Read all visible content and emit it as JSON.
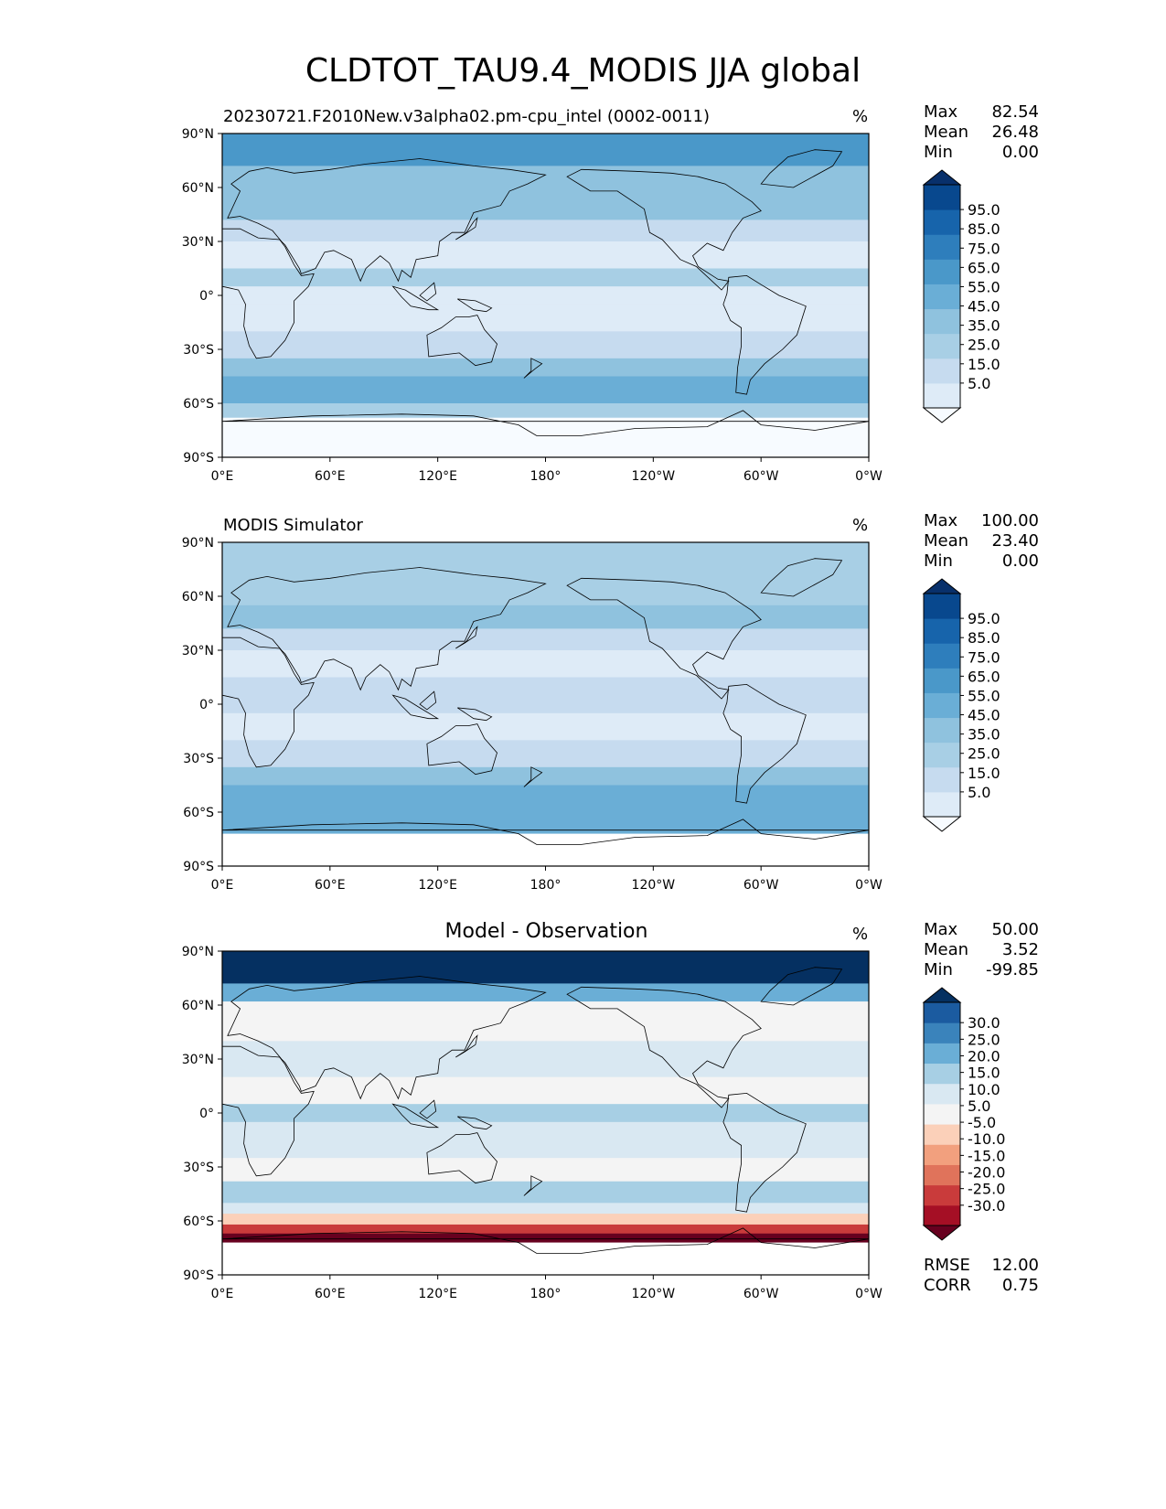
{
  "title": "CLDTOT_TAU9.4_MODIS JJA global",
  "colors": {
    "seq_levels": [
      "#f7fbff",
      "#deebf7",
      "#c6dbef",
      "#a8cfe5",
      "#8fc2de",
      "#6aaed6",
      "#4a98c9",
      "#2e7ebc",
      "#1764ab",
      "#08488e",
      "#08306b"
    ],
    "diff_levels": [
      "#67001f",
      "#a50f25",
      "#c93b3b",
      "#e0735b",
      "#f2a07e",
      "#fbd0b9",
      "#f4f4f4",
      "#d9e8f2",
      "#a7cfe4",
      "#6aaed6",
      "#3a83bb",
      "#1b5ba0",
      "#053061"
    ],
    "land_outline": "#000000"
  },
  "chart_data": [
    {
      "type": "heatmap",
      "panel": "test",
      "title": "20230721.F2010New.v3alpha02.pm-cpu_intel (0002-0011)",
      "units": "%",
      "stats": [
        {
          "label": "Max",
          "value": "82.54"
        },
        {
          "label": "Mean",
          "value": "26.48"
        },
        {
          "label": "Min",
          "value": "0.00"
        }
      ],
      "x_ticks": [
        "0°E",
        "60°E",
        "120°E",
        "180°",
        "120°W",
        "60°W",
        "0°W"
      ],
      "y_ticks": [
        "90°N",
        "60°N",
        "30°N",
        "0°",
        "30°S",
        "60°S",
        "90°S"
      ],
      "xlim": [
        0,
        360
      ],
      "ylim": [
        -90,
        90
      ],
      "colorbar_ticks": [
        "95.0",
        "85.0",
        "75.0",
        "65.0",
        "55.0",
        "45.0",
        "35.0",
        "25.0",
        "15.0",
        "5.0"
      ],
      "zonal_band_levels": [
        {
          "lat": [
            72,
            90
          ],
          "level": 6
        },
        {
          "lat": [
            55,
            72
          ],
          "level": 4
        },
        {
          "lat": [
            42,
            55
          ],
          "level": 4
        },
        {
          "lat": [
            30,
            42
          ],
          "level": 2
        },
        {
          "lat": [
            15,
            30
          ],
          "level": 1
        },
        {
          "lat": [
            5,
            15
          ],
          "level": 3
        },
        {
          "lat": [
            -5,
            5
          ],
          "level": 1
        },
        {
          "lat": [
            -20,
            -5
          ],
          "level": 1
        },
        {
          "lat": [
            -35,
            -20
          ],
          "level": 2
        },
        {
          "lat": [
            -45,
            -35
          ],
          "level": 4
        },
        {
          "lat": [
            -60,
            -45
          ],
          "level": 5
        },
        {
          "lat": [
            -68,
            -60
          ],
          "level": 3
        },
        {
          "lat": [
            -90,
            -68
          ],
          "level": 0
        }
      ]
    },
    {
      "type": "heatmap",
      "panel": "reference",
      "title": "MODIS Simulator",
      "units": "%",
      "stats": [
        {
          "label": "Max",
          "value": "100.00"
        },
        {
          "label": "Mean",
          "value": "23.40"
        },
        {
          "label": "Min",
          "value": "0.00"
        }
      ],
      "x_ticks": [
        "0°E",
        "60°E",
        "120°E",
        "180°",
        "120°W",
        "60°W",
        "0°W"
      ],
      "y_ticks": [
        "90°N",
        "60°N",
        "30°N",
        "0°",
        "30°S",
        "60°S",
        "90°S"
      ],
      "xlim": [
        0,
        360
      ],
      "ylim": [
        -90,
        90
      ],
      "colorbar_ticks": [
        "95.0",
        "85.0",
        "75.0",
        "65.0",
        "55.0",
        "45.0",
        "35.0",
        "25.0",
        "15.0",
        "5.0"
      ],
      "zonal_band_levels": [
        {
          "lat": [
            72,
            90
          ],
          "level": 3
        },
        {
          "lat": [
            55,
            72
          ],
          "level": 3
        },
        {
          "lat": [
            42,
            55
          ],
          "level": 4
        },
        {
          "lat": [
            30,
            42
          ],
          "level": 2
        },
        {
          "lat": [
            15,
            30
          ],
          "level": 1
        },
        {
          "lat": [
            5,
            15
          ],
          "level": 2
        },
        {
          "lat": [
            -5,
            5
          ],
          "level": 2
        },
        {
          "lat": [
            -20,
            -5
          ],
          "level": 1
        },
        {
          "lat": [
            -35,
            -20
          ],
          "level": 2
        },
        {
          "lat": [
            -45,
            -35
          ],
          "level": 4
        },
        {
          "lat": [
            -60,
            -45
          ],
          "level": 5
        },
        {
          "lat": [
            -72,
            -60
          ],
          "level": 5
        },
        {
          "lat": [
            -90,
            -72
          ],
          "level": -1
        }
      ]
    },
    {
      "type": "heatmap",
      "panel": "difference",
      "title": "Model - Observation",
      "units": "%",
      "stats": [
        {
          "label": "Max",
          "value": "50.00"
        },
        {
          "label": "Mean",
          "value": "3.52"
        },
        {
          "label": "Min",
          "value": "-99.85"
        }
      ],
      "metrics": [
        {
          "label": "RMSE",
          "value": "12.00"
        },
        {
          "label": "CORR",
          "value": "0.75"
        }
      ],
      "x_ticks": [
        "0°E",
        "60°E",
        "120°E",
        "180°",
        "120°W",
        "60°W",
        "0°W"
      ],
      "y_ticks": [
        "90°N",
        "60°N",
        "30°N",
        "0°",
        "30°S",
        "60°S",
        "90°S"
      ],
      "xlim": [
        0,
        360
      ],
      "ylim": [
        -90,
        90
      ],
      "colorbar_ticks": [
        "30.0",
        "25.0",
        "20.0",
        "15.0",
        "10.0",
        "5.0",
        "-5.0",
        "-10.0",
        "-15.0",
        "-20.0",
        "-25.0",
        "-30.0"
      ],
      "zonal_band_levels": [
        {
          "lat": [
            72,
            90
          ],
          "level": 12
        },
        {
          "lat": [
            62,
            72
          ],
          "level": 9
        },
        {
          "lat": [
            40,
            62
          ],
          "level": 6
        },
        {
          "lat": [
            20,
            40
          ],
          "level": 7
        },
        {
          "lat": [
            5,
            20
          ],
          "level": 6
        },
        {
          "lat": [
            -5,
            5
          ],
          "level": 8
        },
        {
          "lat": [
            -25,
            -5
          ],
          "level": 7
        },
        {
          "lat": [
            -38,
            -25
          ],
          "level": 6
        },
        {
          "lat": [
            -50,
            -38
          ],
          "level": 8
        },
        {
          "lat": [
            -56,
            -50
          ],
          "level": 7
        },
        {
          "lat": [
            -62,
            -56
          ],
          "level": 5
        },
        {
          "lat": [
            -67,
            -62
          ],
          "level": 2
        },
        {
          "lat": [
            -72,
            -67
          ],
          "level": 0
        },
        {
          "lat": [
            -90,
            -72
          ],
          "level": -1
        }
      ]
    }
  ]
}
